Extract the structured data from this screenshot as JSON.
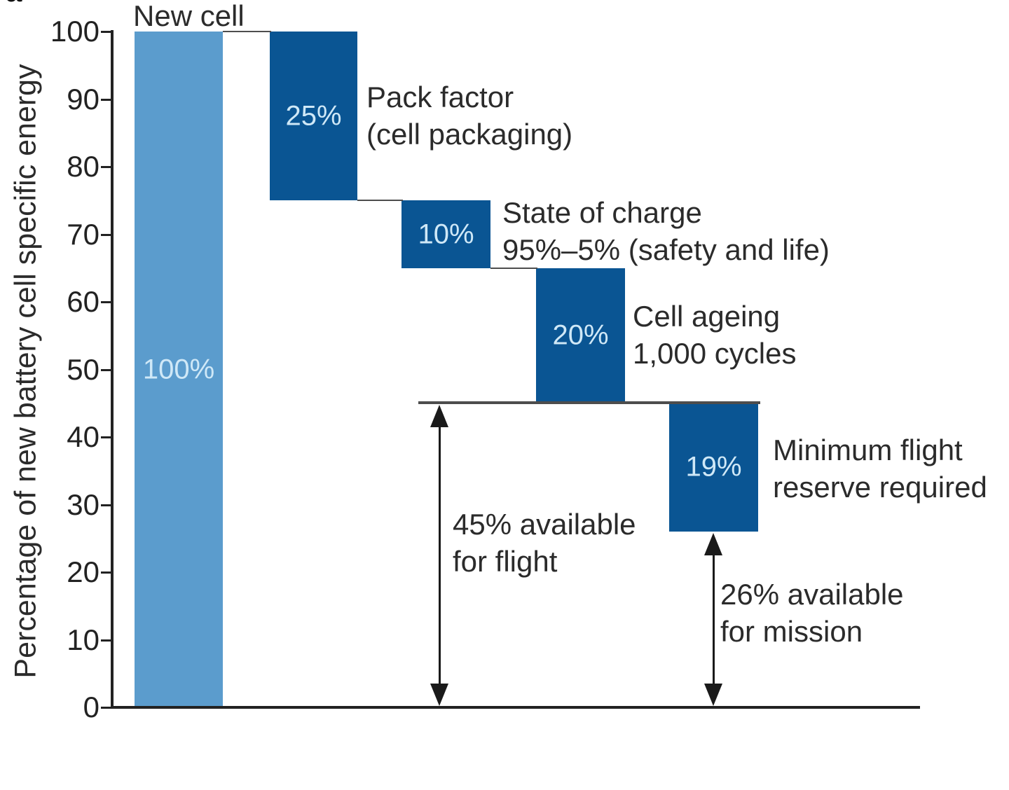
{
  "corner_fragment": "a",
  "chart_data": {
    "type": "waterfall",
    "title": "",
    "ylabel": "Percentage of new battery cell specific energy",
    "xlabel": "",
    "ylim": [
      0,
      100
    ],
    "yticks": [
      0,
      10,
      20,
      30,
      40,
      50,
      60,
      70,
      80,
      90,
      100
    ],
    "grid": false,
    "legend": "none",
    "colors": {
      "light_bar": "#5b9ccd",
      "dark_bar": "#0a5593",
      "value_text": "#cfe8f7",
      "axis": "#222222",
      "connector": "#4d4d4d",
      "arrow": "#1a1a1a",
      "text": "#2b2b2b"
    },
    "bars": [
      {
        "name": "New cell",
        "top_label": "New cell",
        "value": 100,
        "value_label": "100%",
        "from": 0,
        "to": 100,
        "color": "light_bar",
        "side_label": []
      },
      {
        "name": "Pack factor",
        "value": 25,
        "value_label": "25%",
        "from": 75,
        "to": 100,
        "color": "dark_bar",
        "side_label": [
          "Pack factor",
          "(cell packaging)"
        ]
      },
      {
        "name": "State of charge",
        "value": 10,
        "value_label": "10%",
        "from": 65,
        "to": 75,
        "color": "dark_bar",
        "side_label": [
          "State of charge",
          "95%–5% (safety and life)"
        ]
      },
      {
        "name": "Cell ageing",
        "value": 20,
        "value_label": "20%",
        "from": 45,
        "to": 65,
        "color": "dark_bar",
        "side_label": [
          "Cell ageing",
          "1,000 cycles"
        ]
      },
      {
        "name": "Minimum flight reserve",
        "value": 19,
        "value_label": "19%",
        "from": 26,
        "to": 45,
        "color": "dark_bar",
        "side_label": [
          "Minimum flight",
          "reserve required"
        ]
      }
    ],
    "measures": [
      {
        "from": 45,
        "to": 0,
        "label": [
          "45% available",
          "for flight"
        ]
      },
      {
        "from": 26,
        "to": 0,
        "label": [
          "26% available",
          "for mission"
        ]
      }
    ]
  }
}
